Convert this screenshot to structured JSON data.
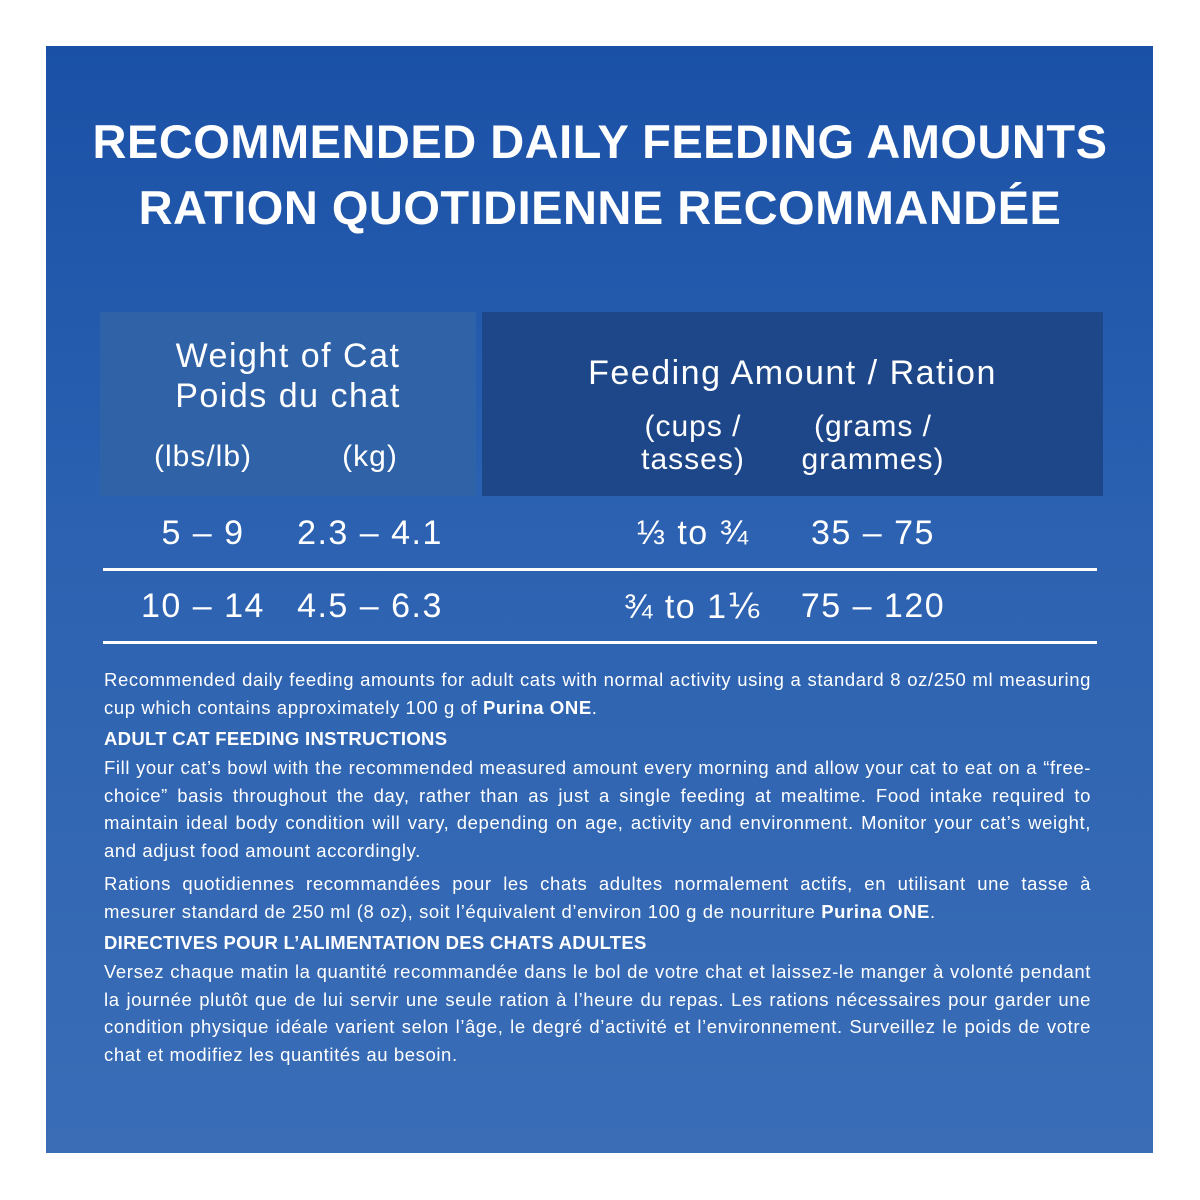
{
  "title": [
    "RECOMMENDED DAILY FEEDING AMOUNTS",
    "RATION QUOTIDIENNE RECOMMANDÉE"
  ],
  "table": {
    "weight_header": [
      "Weight of Cat",
      "Poids du chat"
    ],
    "weight_units": [
      "(lbs/lb)",
      "(kg)"
    ],
    "feeding_header": "Feeding Amount / Ration",
    "feeding_units": [
      [
        "(cups /",
        "tasses)"
      ],
      [
        "(grams /",
        "grammes)"
      ]
    ],
    "rows": [
      [
        "5 – 9",
        "2.3 – 4.1",
        "⅓ to ¾",
        "35 – 75"
      ],
      [
        "10 – 14",
        "4.5 – 6.3",
        "¾ to 1⅙",
        "75 – 120"
      ]
    ]
  },
  "notes": {
    "english": {
      "intro": [
        "Recommended daily feeding amounts for adult cats with normal activity using a standard 8 oz/250 ml measuring cup which contains approximately 100 g of ",
        "Purina ONE",
        "."
      ],
      "heading": "ADULT CAT FEEDING INSTRUCTIONS",
      "body": "Fill your cat’s bowl with the recommended measured amount every morning and allow your cat to eat on a “free-choice” basis throughout the day, rather than as just a single feeding at mealtime. Food intake required to maintain ideal body condition will vary, depending on age, activity and environment. Monitor your cat’s weight, and adjust food amount accordingly."
    },
    "french": {
      "intro": [
        "Rations quotidiennes recommandées pour les chats adultes normalement actifs, en utilisant une tasse à mesurer standard de 250 ml (8 oz), soit l’équivalent d’environ 100 g de nourriture ",
        "Purina ONE",
        "."
      ],
      "heading": "DIRECTIVES POUR L’ALIMENTATION DES CHATS ADULTES",
      "body": "Versez chaque matin la quantité recommandée dans le bol de votre chat et laissez-le manger à volonté pendant la journée plutôt que de lui servir une seule ration à l’heure du repas. Les rations nécessaires pour garder une condition physique idéale varient selon l’âge, le degré d’activité et l’environnement. Surveillez le poids de votre chat et modifiez les quantités au besoin."
    }
  }
}
